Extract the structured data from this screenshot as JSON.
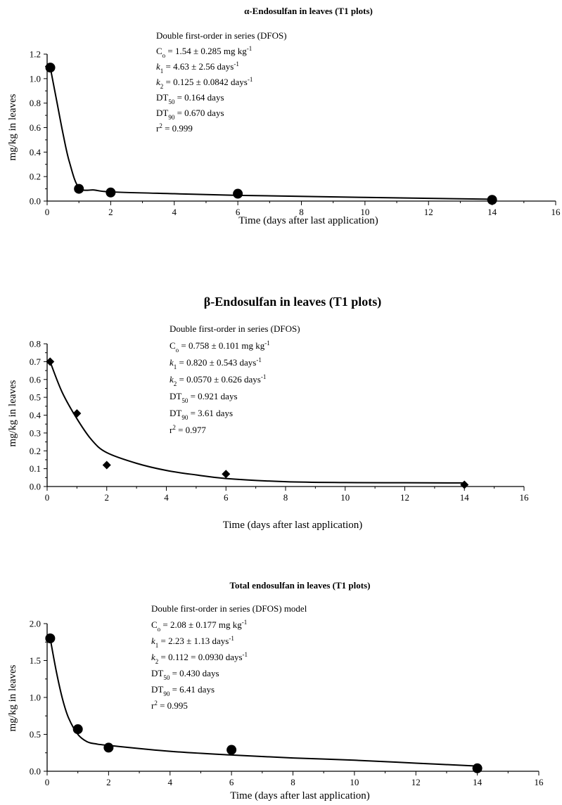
{
  "chart_data": [
    {
      "type": "scatter",
      "title": "α-Endosulfan in leaves (T1 plots)",
      "xlabel": "Time (days after last application)",
      "ylabel": "mg/kg in leaves",
      "xlim": [
        0,
        16
      ],
      "ylim": [
        0,
        1.2
      ],
      "xticks": [
        "0",
        "2",
        "4",
        "6",
        "8",
        "10",
        "12",
        "14",
        "16"
      ],
      "yticks": [
        "0.0",
        "0.2",
        "0.4",
        "0.6",
        "0.8",
        "1.0",
        "1.2"
      ],
      "grid": false,
      "legend": "none",
      "marker": "circle",
      "series": [
        {
          "observed": {
            "x": [
              0.1,
              1,
              2,
              6,
              14
            ],
            "y": [
              1.09,
              0.1,
              0.07,
              0.06,
              0.01
            ]
          },
          "fit": {
            "x": [
              0.1,
              0.3,
              0.5,
              0.7,
              1.0,
              1.5,
              2.0,
              4.0,
              6.0,
              10.0,
              14.0
            ],
            "y": [
              1.09,
              0.82,
              0.55,
              0.32,
              0.11,
              0.09,
              0.075,
              0.06,
              0.047,
              0.03,
              0.015
            ]
          }
        }
      ],
      "annotation": [
        {
          "type": "plain",
          "text": "Double first-order in series (DFOS)"
        },
        {
          "type": "sub",
          "a": "C",
          "sub": "o",
          "b": " = 1.54 ± 0.285 mg kg",
          "sup": "-1"
        },
        {
          "type": "k",
          "a": "k",
          "sub": "1",
          "b": " = 4.63 ± 2.56 days",
          "sup": "-1"
        },
        {
          "type": "k",
          "a": "k",
          "sub": "2",
          "b": " = 0.125 ± 0.0842 days",
          "sup": "-1"
        },
        {
          "type": "sub",
          "a": "DT",
          "sub": "50",
          "b": " = 0.164 days",
          "sup": ""
        },
        {
          "type": "sub",
          "a": "DT",
          "sub": "90",
          "b": " = 0.670 days",
          "sup": ""
        },
        {
          "type": "r2",
          "a": "r",
          "sup": "2",
          "b": " = 0.999"
        }
      ]
    },
    {
      "type": "scatter",
      "title": "β-Endosulfan in leaves (T1 plots)",
      "xlabel": "Time (days after last application)",
      "ylabel": "mg/kg in leaves",
      "xlim": [
        0,
        16
      ],
      "ylim": [
        0,
        0.8
      ],
      "xticks": [
        "0",
        "2",
        "4",
        "6",
        "8",
        "10",
        "12",
        "14",
        "16"
      ],
      "yticks": [
        "0.0",
        "0.1",
        "0.2",
        "0.3",
        "0.4",
        "0.5",
        "0.6",
        "0.7",
        "0.8"
      ],
      "grid": false,
      "legend": "none",
      "marker": "diamond",
      "series": [
        {
          "observed": {
            "x": [
              0.1,
              1,
              2,
              6,
              14
            ],
            "y": [
              0.7,
              0.41,
              0.12,
              0.07,
              0.01
            ]
          },
          "fit": {
            "x": [
              0.1,
              0.5,
              1.0,
              1.5,
              2.0,
              3.0,
              4.0,
              5.0,
              6.0,
              8.0,
              10.0,
              12.0,
              14.0
            ],
            "y": [
              0.7,
              0.53,
              0.38,
              0.26,
              0.19,
              0.13,
              0.09,
              0.065,
              0.045,
              0.027,
              0.022,
              0.021,
              0.02
            ]
          }
        }
      ],
      "annotation": [
        {
          "type": "plain",
          "text": "Double first-order in series (DFOS)"
        },
        {
          "type": "sub",
          "a": "C",
          "sub": "o",
          "b": " = 0.758 ± 0.101 mg kg",
          "sup": "-1"
        },
        {
          "type": "k",
          "a": "k",
          "sub": "1",
          "b": " = 0.820 ± 0.543 days",
          "sup": "-1"
        },
        {
          "type": "k",
          "a": "k",
          "sub": "2",
          "b": " = 0.0570 ± 0.626 days",
          "sup": "-1"
        },
        {
          "type": "sub",
          "a": "DT",
          "sub": "50",
          "b": " = 0.921 days",
          "sup": ""
        },
        {
          "type": "sub",
          "a": "DT",
          "sub": "90",
          "b": " = 3.61 days",
          "sup": ""
        },
        {
          "type": "r2",
          "a": "r",
          "sup": "2",
          "b": " = 0.977"
        }
      ]
    },
    {
      "type": "scatter",
      "title": "Total endosulfan in leaves (T1 plots)",
      "xlabel": "Time (days after last application)",
      "ylabel": "mg/kg in leaves",
      "xlim": [
        0,
        16
      ],
      "ylim": [
        0,
        2.0
      ],
      "xticks": [
        "0",
        "2",
        "4",
        "6",
        "8",
        "10",
        "12",
        "14",
        "16"
      ],
      "yticks": [
        "0.0",
        "0.5",
        "1.0",
        "1.5",
        "2.0"
      ],
      "grid": false,
      "legend": "none",
      "marker": "circle",
      "series": [
        {
          "observed": {
            "x": [
              0.1,
              1,
              2,
              6,
              14
            ],
            "y": [
              1.8,
              0.57,
              0.32,
              0.29,
              0.04
            ]
          },
          "fit": {
            "x": [
              0.1,
              0.3,
              0.5,
              0.7,
              1.0,
              1.3,
              1.6,
              2.0,
              4.0,
              6.0,
              8.0,
              10.0,
              12.0,
              14.0
            ],
            "y": [
              1.8,
              1.35,
              0.98,
              0.72,
              0.5,
              0.4,
              0.37,
              0.35,
              0.27,
              0.22,
              0.18,
              0.15,
              0.11,
              0.07
            ]
          }
        }
      ],
      "annotation": [
        {
          "type": "plain",
          "text": "Double first-order in series (DFOS) model"
        },
        {
          "type": "sub",
          "a": "C",
          "sub": "o",
          "b": " = 2.08 ± 0.177 mg kg",
          "sup": "-1"
        },
        {
          "type": "k",
          "a": "k",
          "sub": "1",
          "b": " = 2.23 ± 1.13 days",
          "sup": "-1"
        },
        {
          "type": "k",
          "a": "k",
          "sub": "2",
          "b": " = 0.112 = 0.0930 days",
          "sup": "-1"
        },
        {
          "type": "sub",
          "a": "DT",
          "sub": "50",
          "b": " = 0.430 days",
          "sup": ""
        },
        {
          "type": "sub",
          "a": "DT",
          "sub": "90",
          "b": " = 6.41 days",
          "sup": ""
        },
        {
          "type": "r2",
          "a": "r",
          "sup": "2",
          "b": " = 0.995"
        }
      ]
    }
  ]
}
